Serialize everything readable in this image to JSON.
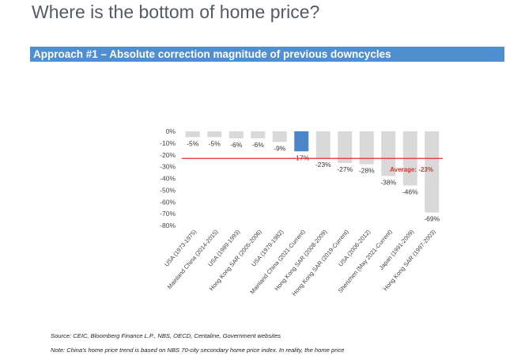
{
  "header": {
    "title": "Where is the bottom of home price?",
    "banner": "Approach #1 – Absolute correction magnitude of previous downcycles"
  },
  "footnotes": {
    "source": "Source: CEIC, Bloomberg Finance L.P., NBS, OECD, Centaline, Government websites",
    "note": "Note: China's home price trend is based on NBS 70-city secondary home price index. In reality, the home price"
  },
  "chart_data": {
    "type": "bar",
    "categories": [
      "USA (1973-1975)",
      "Mainland China (2014-2015)",
      "USA (1989-1993)",
      "Hong Kong SAR (2005-2006)",
      "USA (1979-1982)",
      "Mainland China (2021-Current)",
      "Hong Kong SAR (2008-2009)",
      "Hong Kong SAR (2019-Current)",
      "USA (2006-2012)",
      "Shenzhen (May 2021-Current)",
      "Japan (1991-2009)",
      "Hong Kong SAR (1997-2003)"
    ],
    "values": [
      -5,
      -5,
      -6,
      -6,
      -9,
      -17,
      -23,
      -27,
      -28,
      -38,
      -46,
      -69
    ],
    "data_labels": [
      "-5%",
      "-5%",
      "-6%",
      "-6%",
      "-9%",
      "-17%",
      "-23%",
      "-27%",
      "-28%",
      "-38%",
      "-46%",
      "-69%"
    ],
    "highlight_index": 5,
    "ylim": [
      -80,
      0
    ],
    "yticks": [
      0,
      -10,
      -20,
      -30,
      -40,
      -50,
      -60,
      -70,
      -80
    ],
    "ytick_labels": [
      "0%",
      "-10%",
      "-20%",
      "-30%",
      "-40%",
      "-50%",
      "-60%",
      "-70%",
      "-80%"
    ],
    "reference_line": {
      "value": -23,
      "label": "Average: -23%"
    },
    "colors": {
      "bar": "#d9d9d9",
      "highlight": "#4a86c8",
      "reference": "#e03030"
    },
    "grid": false,
    "legend": "none"
  }
}
